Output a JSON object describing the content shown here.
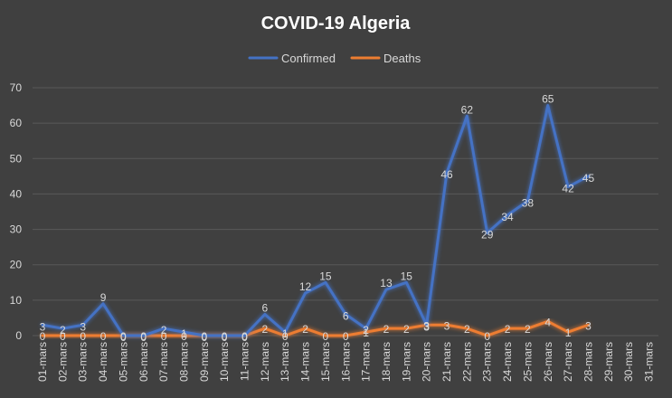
{
  "chart_data": {
    "type": "line",
    "title": "COVID-19 Algeria",
    "xlabel": "",
    "ylabel": "",
    "ylim": [
      0,
      70
    ],
    "yticks": [
      0,
      10,
      20,
      30,
      40,
      50,
      60,
      70
    ],
    "grid": true,
    "legend_position": "top-center",
    "categories": [
      "01-mars",
      "02-mars",
      "03-mars",
      "04-mars",
      "05-mars",
      "06-mars",
      "07-mars",
      "08-mars",
      "09-mars",
      "10-mars",
      "11-mars",
      "12-mars",
      "13-mars",
      "14-mars",
      "15-mars",
      "16-mars",
      "17-mars",
      "18-mars",
      "19-mars",
      "20-mars",
      "21-mars",
      "22-mars",
      "23-mars",
      "24-mars",
      "25-mars",
      "26-mars",
      "27-mars",
      "28-mars",
      "29-mars",
      "30-mars",
      "31-mars"
    ],
    "series": [
      {
        "name": "Confirmed",
        "color": "#4472C4",
        "values": [
          3,
          2,
          3,
          9,
          0,
          0,
          2,
          1,
          0,
          0,
          0,
          6,
          1,
          12,
          15,
          6,
          2,
          13,
          15,
          3,
          46,
          62,
          29,
          34,
          38,
          65,
          42,
          45,
          null,
          null,
          null
        ]
      },
      {
        "name": "Deaths",
        "color": "#ED7D31",
        "values": [
          0,
          0,
          0,
          0,
          0,
          0,
          0,
          0,
          0,
          0,
          0,
          2,
          0,
          2,
          0,
          0,
          1,
          2,
          2,
          3,
          3,
          2,
          0,
          2,
          2,
          4,
          1,
          3,
          null,
          null,
          null
        ]
      }
    ]
  }
}
